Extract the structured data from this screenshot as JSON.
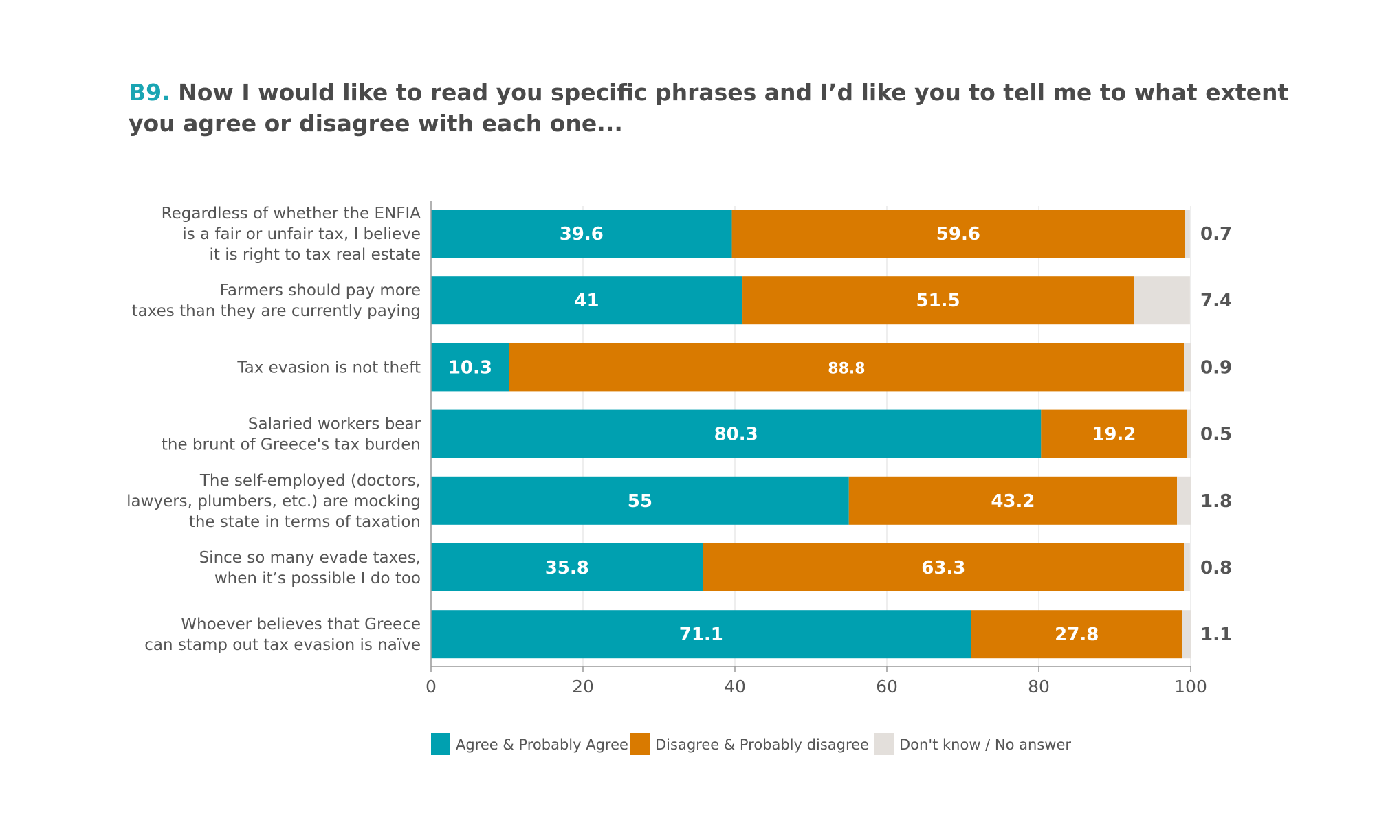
{
  "title": {
    "code": "B9.",
    "text": " Now I would like to read you specific phrases and I’d like you to tell me to what extent you agree or disagree with each one..."
  },
  "chart_data": {
    "type": "bar",
    "orientation": "horizontal",
    "stacked": true,
    "categories": [
      [
        "Regardless of whether the ENFIA",
        "is a fair or unfair tax, I believe",
        "it is right to tax real estate"
      ],
      [
        "Farmers should pay more",
        "taxes than they are currently paying"
      ],
      [
        "Tax evasion is not theft"
      ],
      [
        "Salaried workers bear",
        "the brunt of Greece's tax burden"
      ],
      [
        "The self-employed (doctors,",
        "lawyers, plumbers, etc.) are mocking",
        "the state in terms of taxation"
      ],
      [
        "Since so many evade taxes,",
        "when it’s possible I do too"
      ],
      [
        "Whoever believes that Greece",
        "can stamp out tax evasion is naïve"
      ]
    ],
    "series": [
      {
        "name": "Agree & Probably Agree",
        "color": "#00a0b0",
        "values": [
          39.6,
          41,
          10.3,
          80.3,
          55,
          35.8,
          71.1
        ]
      },
      {
        "name": "Disagree & Probably disagree",
        "color": "#d97a00",
        "values": [
          59.6,
          51.5,
          88.8,
          19.2,
          43.2,
          63.3,
          27.8
        ]
      },
      {
        "name": "Don't know / No answer",
        "color": "#e3dfdb",
        "values": [
          0.7,
          7.4,
          0.9,
          0.5,
          1.8,
          0.8,
          1.1
        ]
      }
    ],
    "xlim": [
      0,
      100
    ],
    "xticks": [
      0,
      20,
      40,
      60,
      80,
      100
    ],
    "legend": "bottom"
  }
}
